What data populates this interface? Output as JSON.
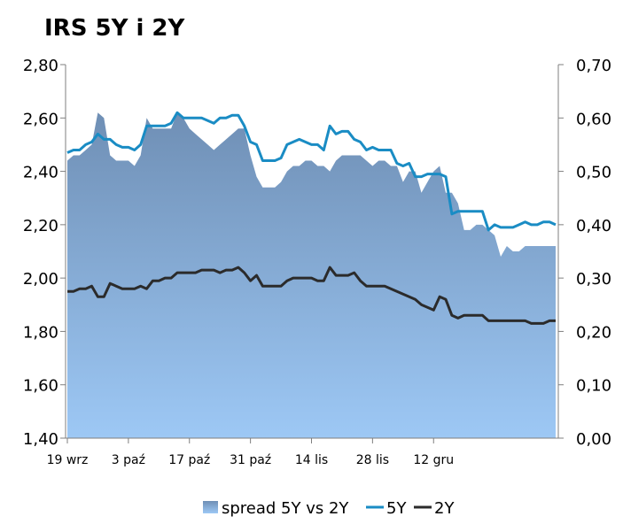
{
  "chart_data": {
    "type": "line",
    "title": "IRS 5Y i 2Y",
    "x_tick_labels": [
      "19 wrz",
      "3 paź",
      "17 paź",
      "31 paź",
      "14 lis",
      "28 lis",
      "12 gru"
    ],
    "y_left": {
      "ylim": [
        1.4,
        2.8
      ],
      "tick_labels": [
        "1,40",
        "1,60",
        "1,80",
        "2,00",
        "2,20",
        "2,40",
        "2,60",
        "2,80"
      ]
    },
    "y_right": {
      "ylim": [
        0.0,
        0.7
      ],
      "tick_labels": [
        "0,00",
        "0,10",
        "0,20",
        "0,30",
        "0,40",
        "0,50",
        "0,60",
        "0,70"
      ]
    },
    "grid": false,
    "legend_position": "bottom",
    "series": [
      {
        "name": "spread 5Y vs 2Y",
        "kind": "area",
        "axis": "right",
        "color_top": "#6f8fb5",
        "color_bottom": "#9dc8f5",
        "values": [
          0.52,
          0.53,
          0.53,
          0.54,
          0.55,
          0.61,
          0.6,
          0.53,
          0.52,
          0.52,
          0.52,
          0.51,
          0.53,
          0.6,
          0.58,
          0.58,
          0.58,
          0.58,
          0.61,
          0.6,
          0.58,
          0.57,
          0.56,
          0.55,
          0.54,
          0.55,
          0.56,
          0.57,
          0.58,
          0.58,
          0.53,
          0.49,
          0.47,
          0.47,
          0.47,
          0.48,
          0.5,
          0.51,
          0.51,
          0.52,
          0.52,
          0.51,
          0.51,
          0.5,
          0.52,
          0.53,
          0.53,
          0.53,
          0.53,
          0.52,
          0.51,
          0.52,
          0.52,
          0.51,
          0.51,
          0.48,
          0.5,
          0.5,
          0.46,
          0.48,
          0.5,
          0.51,
          0.46,
          0.46,
          0.44,
          0.39,
          0.39,
          0.4,
          0.4,
          0.39,
          0.38,
          0.34,
          0.36,
          0.35,
          0.35,
          0.36,
          0.36,
          0.36,
          0.36,
          0.36,
          0.36
        ]
      },
      {
        "name": "5Y",
        "kind": "line",
        "axis": "left",
        "color": "#1a8cc4",
        "values": [
          2.47,
          2.48,
          2.48,
          2.5,
          2.51,
          2.54,
          2.52,
          2.52,
          2.5,
          2.49,
          2.49,
          2.48,
          2.5,
          2.57,
          2.57,
          2.57,
          2.57,
          2.58,
          2.62,
          2.6,
          2.6,
          2.6,
          2.6,
          2.59,
          2.58,
          2.6,
          2.6,
          2.61,
          2.61,
          2.57,
          2.51,
          2.5,
          2.44,
          2.44,
          2.44,
          2.45,
          2.5,
          2.51,
          2.52,
          2.51,
          2.5,
          2.5,
          2.48,
          2.57,
          2.54,
          2.55,
          2.55,
          2.52,
          2.51,
          2.48,
          2.49,
          2.48,
          2.48,
          2.48,
          2.43,
          2.42,
          2.43,
          2.38,
          2.38,
          2.39,
          2.39,
          2.39,
          2.38,
          2.24,
          2.25,
          2.25,
          2.25,
          2.25,
          2.25,
          2.18,
          2.2,
          2.19,
          2.19,
          2.19,
          2.2,
          2.21,
          2.2,
          2.2,
          2.21,
          2.21,
          2.2
        ]
      },
      {
        "name": "2Y",
        "kind": "line",
        "axis": "left",
        "color": "#2b2b2b",
        "values": [
          1.95,
          1.95,
          1.96,
          1.96,
          1.97,
          1.93,
          1.93,
          1.98,
          1.97,
          1.96,
          1.96,
          1.96,
          1.97,
          1.96,
          1.99,
          1.99,
          2.0,
          2.0,
          2.02,
          2.02,
          2.02,
          2.02,
          2.03,
          2.03,
          2.03,
          2.02,
          2.03,
          2.03,
          2.04,
          2.02,
          1.99,
          2.01,
          1.97,
          1.97,
          1.97,
          1.97,
          1.99,
          2.0,
          2.0,
          2.0,
          2.0,
          1.99,
          1.99,
          2.04,
          2.01,
          2.01,
          2.01,
          2.02,
          1.99,
          1.97,
          1.97,
          1.97,
          1.97,
          1.96,
          1.95,
          1.94,
          1.93,
          1.92,
          1.9,
          1.89,
          1.88,
          1.93,
          1.92,
          1.86,
          1.85,
          1.86,
          1.86,
          1.86,
          1.86,
          1.84,
          1.84,
          1.84,
          1.84,
          1.84,
          1.84,
          1.84,
          1.83,
          1.83,
          1.83,
          1.84,
          1.84
        ]
      }
    ]
  }
}
